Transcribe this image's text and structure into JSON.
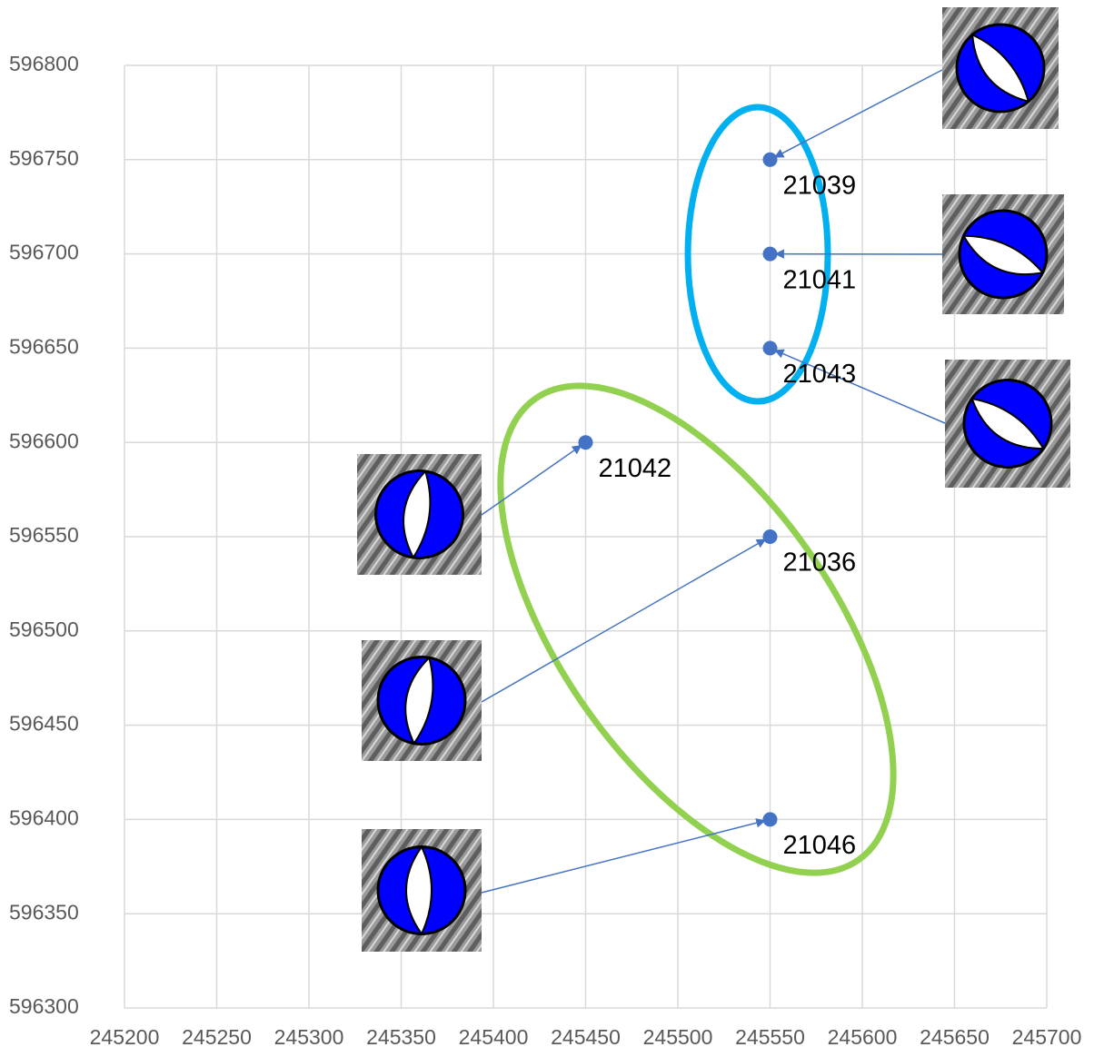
{
  "chart_data": {
    "type": "scatter",
    "x": [
      245550,
      245550,
      245550,
      245450,
      245550,
      245550
    ],
    "series": [
      {
        "color": "#4472c4",
        "values": [
          596750,
          596700,
          596650,
          596600,
          596550,
          596400
        ],
        "point_labels": [
          "21039",
          "21041",
          "21043",
          "21042",
          "21036",
          "21046"
        ]
      }
    ],
    "xlim": [
      245200,
      245700
    ],
    "xticks": [
      245200,
      245250,
      245300,
      245350,
      245400,
      245450,
      245500,
      245550,
      245600,
      245650,
      245700
    ],
    "ylim": [
      596300,
      596800
    ],
    "yticks": [
      596300,
      596350,
      596400,
      596450,
      596500,
      596550,
      596600,
      596650,
      596700,
      596750,
      596800
    ],
    "grid": true
  }
}
